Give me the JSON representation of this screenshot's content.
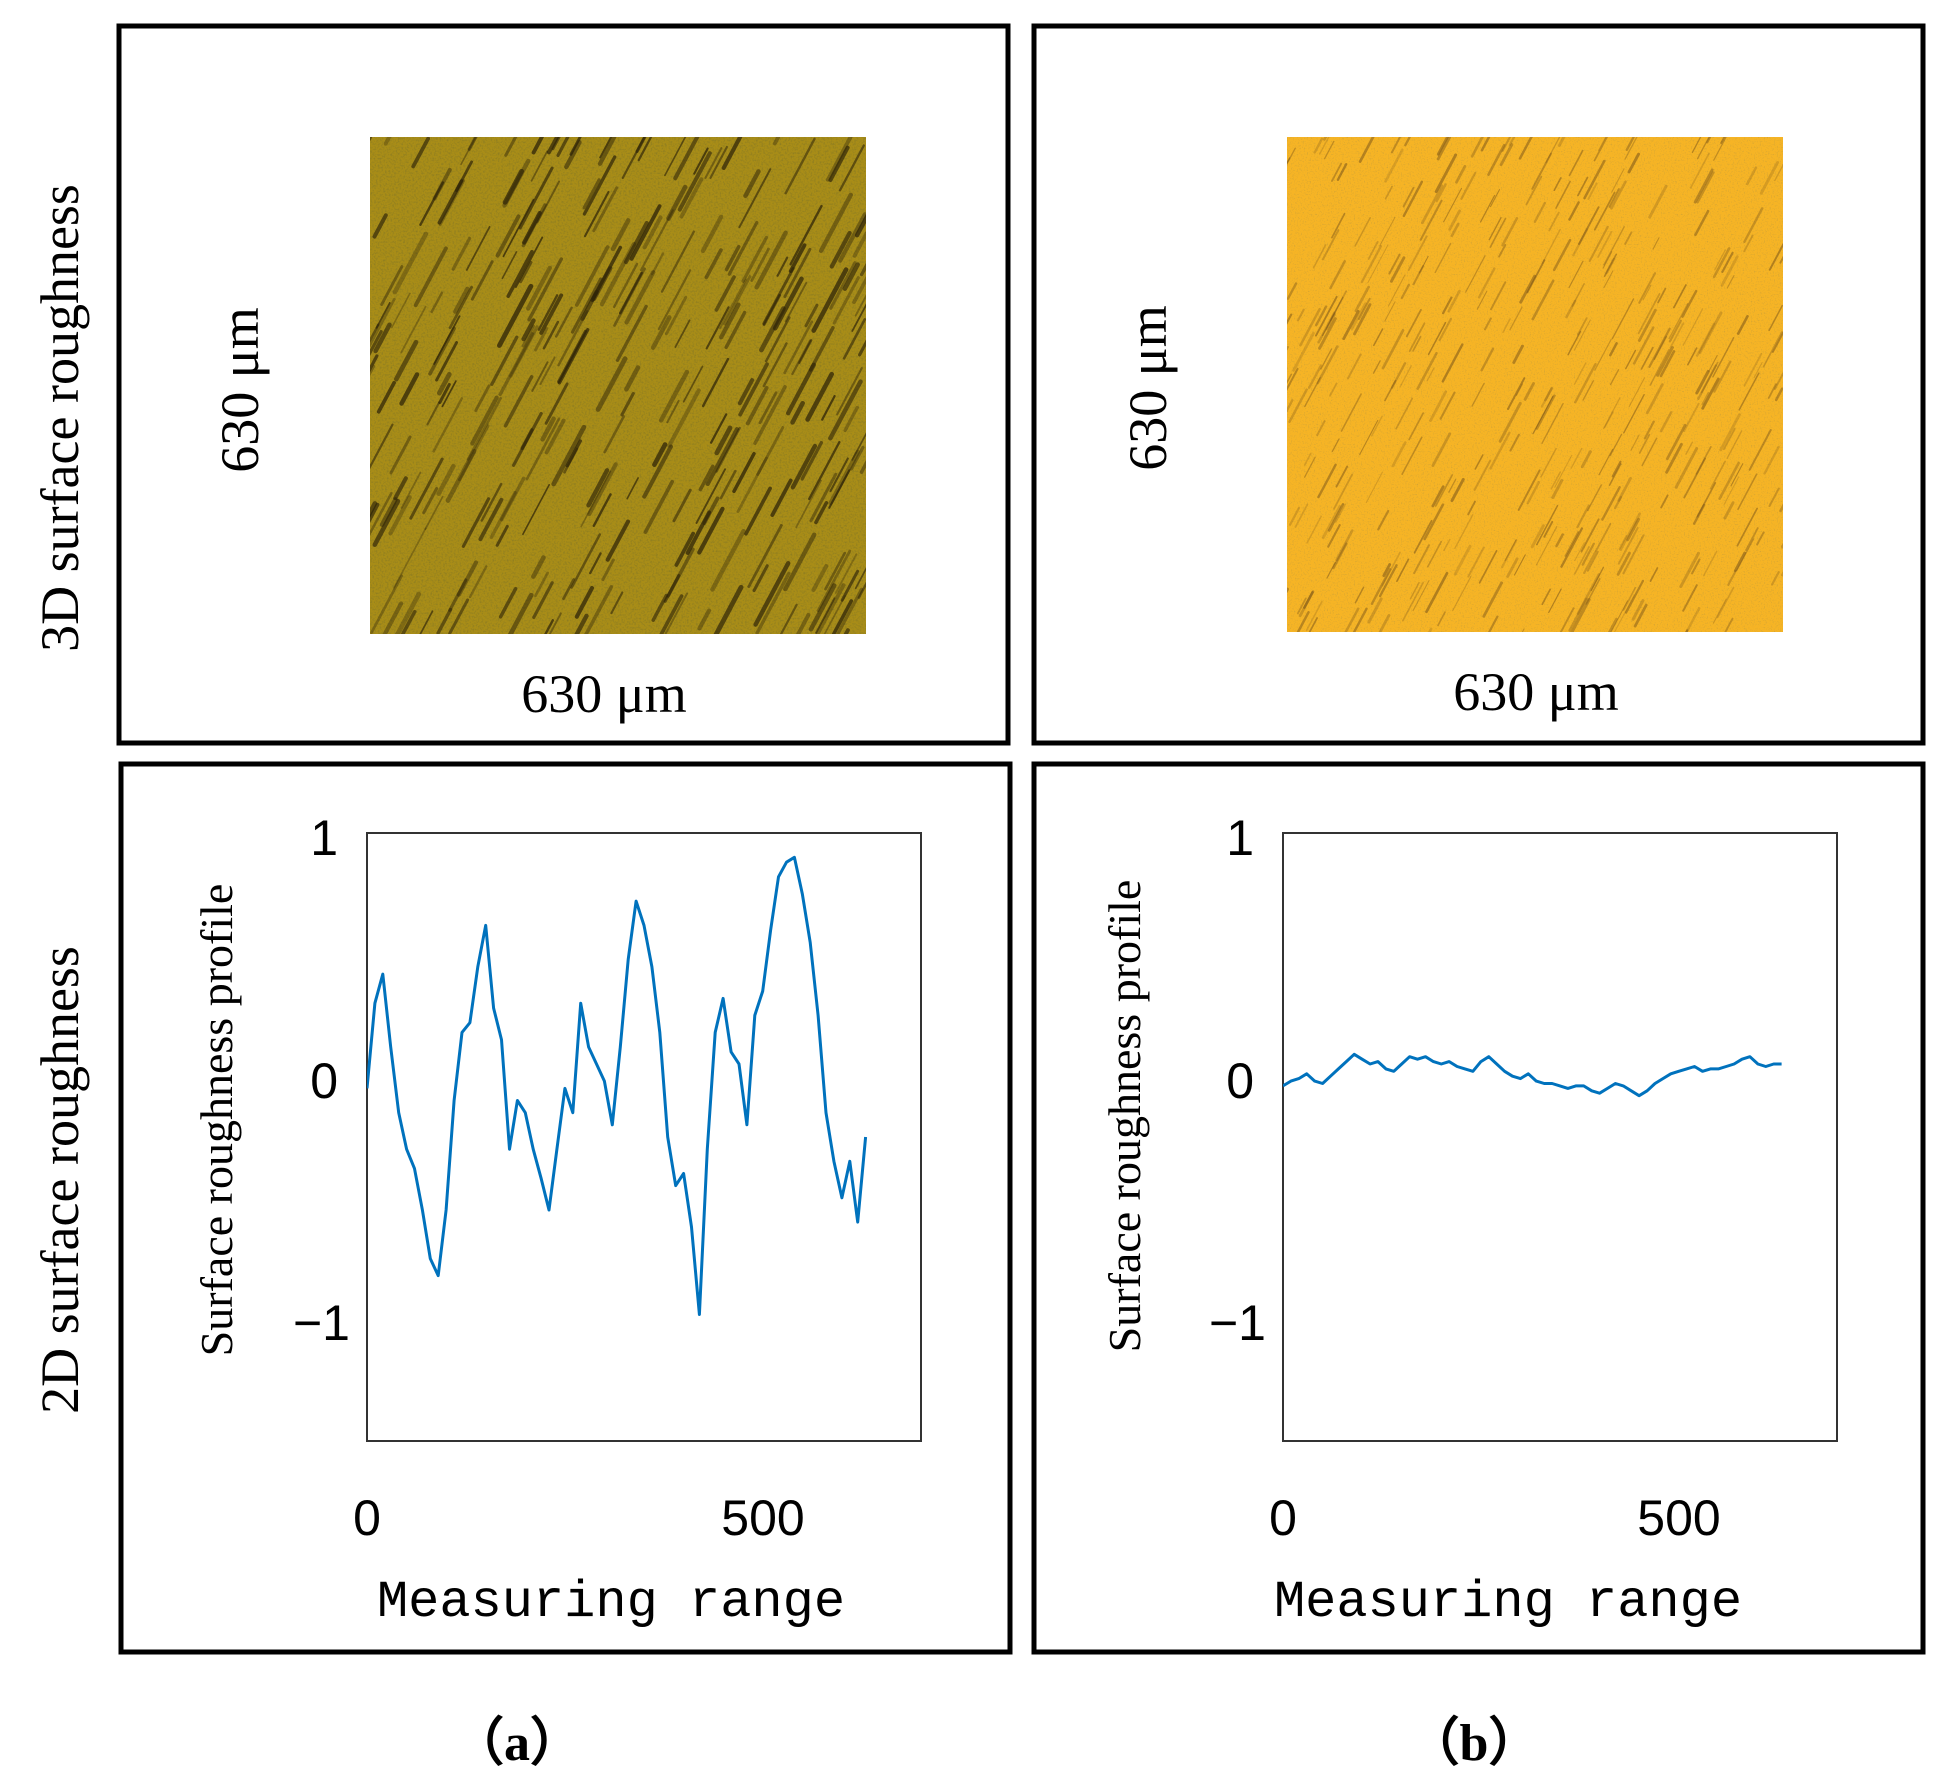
{
  "row_labels": {
    "top": "3D surface roughness",
    "bottom": "2D surface roughness"
  },
  "panels": [
    {
      "caption": "（a）",
      "surface": {
        "width_label": "630 μm",
        "height_label": "630 μm",
        "base_color": "#b89a1a",
        "streak_color": "#2c2208",
        "texture": "dense-dark-streaks"
      }
    },
    {
      "caption": "（b）",
      "surface": {
        "width_label": "630 μm",
        "height_label": "630 μm",
        "base_color": "#f6b425",
        "streak_color": "#7a5418",
        "texture": "fine-light-streaks"
      }
    }
  ],
  "chart_data": [
    {
      "type": "line",
      "panel": "a",
      "xlabel": "Measuring range",
      "ylabel": "Surface roughness profile",
      "xlim": [
        0,
        700
      ],
      "ylim": [
        -1.5,
        1
      ],
      "xticks": [
        0,
        500
      ],
      "xtick_labels": [
        "0",
        "500"
      ],
      "yticks": [
        1,
        0,
        -1
      ],
      "ytick_labels": [
        "1",
        "0",
        "−1"
      ],
      "line_color": "#0072bd",
      "series": [
        {
          "name": "profile",
          "x": [
            0,
            10,
            20,
            30,
            40,
            50,
            60,
            70,
            80,
            90,
            100,
            110,
            120,
            130,
            140,
            150,
            160,
            170,
            180,
            190,
            200,
            210,
            220,
            230,
            240,
            250,
            260,
            270,
            280,
            290,
            300,
            310,
            320,
            330,
            340,
            350,
            360,
            370,
            380,
            390,
            400,
            410,
            420,
            430,
            440,
            450,
            460,
            470,
            480,
            490,
            500,
            510,
            520,
            530,
            540,
            550,
            560,
            570,
            580,
            590,
            600,
            610,
            620,
            630
          ],
          "y": [
            -0.05,
            0.3,
            0.42,
            0.12,
            -0.15,
            -0.3,
            -0.38,
            -0.55,
            -0.75,
            -0.82,
            -0.55,
            -0.1,
            0.18,
            0.22,
            0.45,
            0.62,
            0.28,
            0.15,
            -0.3,
            -0.1,
            -0.15,
            -0.3,
            -0.42,
            -0.55,
            -0.3,
            -0.05,
            -0.15,
            0.3,
            0.12,
            0.05,
            -0.02,
            -0.2,
            0.12,
            0.48,
            0.72,
            0.62,
            0.45,
            0.18,
            -0.25,
            -0.45,
            -0.4,
            -0.62,
            -0.98,
            -0.3,
            0.18,
            0.32,
            0.1,
            0.05,
            -0.2,
            0.25,
            0.35,
            0.6,
            0.82,
            0.88,
            0.9,
            0.75,
            0.55,
            0.25,
            -0.15,
            -0.35,
            -0.5,
            -0.35,
            -0.6,
            -0.25
          ]
        }
      ]
    },
    {
      "type": "line",
      "panel": "b",
      "xlabel": "Measuring range",
      "ylabel": "Surface roughness profile",
      "xlim": [
        0,
        700
      ],
      "ylim": [
        -1.5,
        1
      ],
      "xticks": [
        0,
        500
      ],
      "xtick_labels": [
        "0",
        "500"
      ],
      "yticks": [
        1,
        0,
        -1
      ],
      "ytick_labels": [
        "1",
        "0",
        "−1"
      ],
      "line_color": "#0072bd",
      "series": [
        {
          "name": "profile",
          "x": [
            0,
            10,
            20,
            30,
            40,
            50,
            60,
            70,
            80,
            90,
            100,
            110,
            120,
            130,
            140,
            150,
            160,
            170,
            180,
            190,
            200,
            210,
            220,
            230,
            240,
            250,
            260,
            270,
            280,
            290,
            300,
            310,
            320,
            330,
            340,
            350,
            360,
            370,
            380,
            390,
            400,
            410,
            420,
            430,
            440,
            450,
            460,
            470,
            480,
            490,
            500,
            510,
            520,
            530,
            540,
            550,
            560,
            570,
            580,
            590,
            600,
            610,
            620,
            630
          ],
          "y": [
            -0.04,
            -0.02,
            -0.01,
            0.01,
            -0.02,
            -0.03,
            0.0,
            0.03,
            0.06,
            0.09,
            0.07,
            0.05,
            0.06,
            0.03,
            0.02,
            0.05,
            0.08,
            0.07,
            0.08,
            0.06,
            0.05,
            0.06,
            0.04,
            0.03,
            0.02,
            0.06,
            0.08,
            0.05,
            0.02,
            0.0,
            -0.01,
            0.01,
            -0.02,
            -0.03,
            -0.03,
            -0.04,
            -0.05,
            -0.04,
            -0.04,
            -0.06,
            -0.07,
            -0.05,
            -0.03,
            -0.04,
            -0.06,
            -0.08,
            -0.06,
            -0.03,
            -0.01,
            0.01,
            0.02,
            0.03,
            0.04,
            0.02,
            0.03,
            0.03,
            0.04,
            0.05,
            0.07,
            0.08,
            0.05,
            0.04,
            0.05,
            0.05
          ]
        }
      ]
    }
  ]
}
